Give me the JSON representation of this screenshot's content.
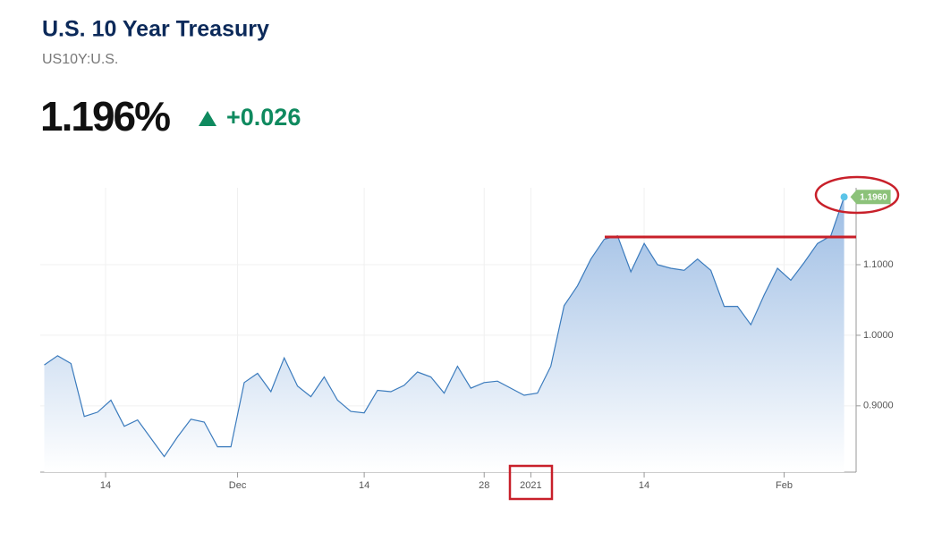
{
  "header": {
    "title": "U.S. 10 Year Treasury",
    "symbol": "US10Y:U.S.",
    "price": "1.196%",
    "change": "+0.026"
  },
  "chart_data": {
    "type": "area",
    "color": "#3b7bbd",
    "x": [
      0,
      1,
      2,
      3,
      4,
      5,
      6,
      7,
      8,
      9,
      10,
      11,
      12,
      13,
      14,
      15,
      16,
      17,
      18,
      19,
      20,
      21,
      22,
      23,
      24,
      25,
      26,
      27,
      28,
      29,
      30,
      31,
      32,
      33,
      34,
      35,
      36,
      37,
      38,
      39,
      40,
      41,
      42,
      43,
      44,
      45,
      46,
      47,
      48,
      49,
      50,
      51,
      52,
      53,
      54,
      55,
      56,
      57,
      58,
      59,
      60
    ],
    "values": [
      0.958,
      0.971,
      0.96,
      0.885,
      0.891,
      0.908,
      0.871,
      0.88,
      0.854,
      0.828,
      0.856,
      0.881,
      0.877,
      0.842,
      0.842,
      0.933,
      0.946,
      0.92,
      0.968,
      0.928,
      0.913,
      0.941,
      0.908,
      0.892,
      0.89,
      0.922,
      0.92,
      0.929,
      0.948,
      0.941,
      0.918,
      0.956,
      0.925,
      0.933,
      0.935,
      0.925,
      0.915,
      0.918,
      0.956,
      1.042,
      1.07,
      1.108,
      1.136,
      1.141,
      1.09,
      1.13,
      1.1,
      1.095,
      1.092,
      1.108,
      1.092,
      1.041,
      1.041,
      1.015,
      1.057,
      1.095,
      1.078,
      1.103,
      1.13,
      1.141,
      1.196
    ],
    "end_label": "1.1960",
    "xlim": [
      -0.3,
      60.9
    ],
    "xticks": [
      {
        "value": 4.6,
        "label": "14"
      },
      {
        "value": 14.5,
        "label": "Dec"
      },
      {
        "value": 24.0,
        "label": "14"
      },
      {
        "value": 33.0,
        "label": "28"
      },
      {
        "value": 36.5,
        "label": "2021"
      },
      {
        "value": 45.0,
        "label": "14"
      },
      {
        "value": 55.5,
        "label": "Feb"
      }
    ],
    "ylim": [
      0.806,
      1.209
    ],
    "yticks": [
      {
        "value": 0.9,
        "label": "0.9000"
      },
      {
        "value": 1.0,
        "label": "1.0000"
      },
      {
        "value": 1.1,
        "label": "1.1000"
      }
    ],
    "grid": true
  }
}
